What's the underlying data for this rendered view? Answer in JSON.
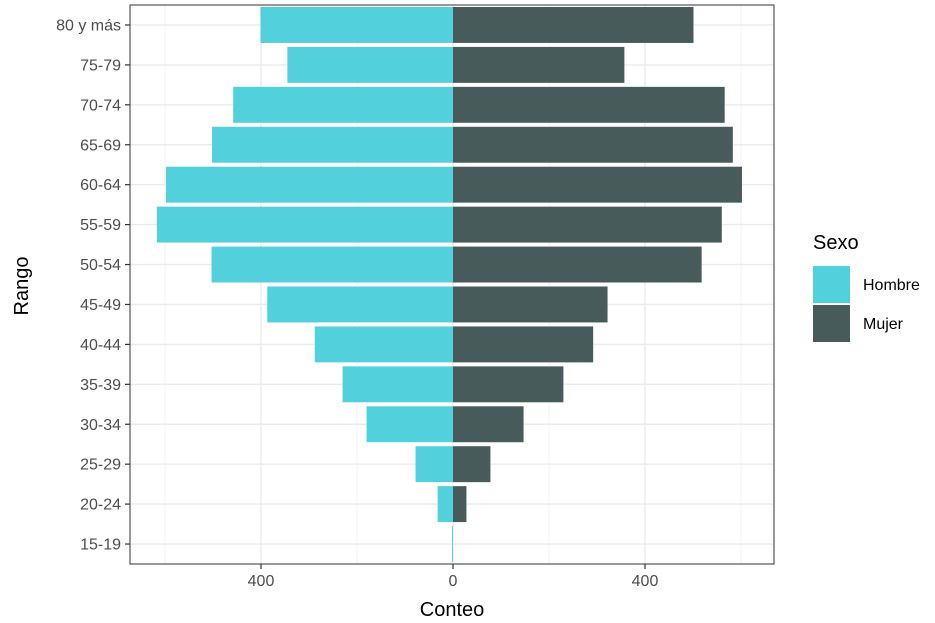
{
  "chart_data": {
    "type": "bar",
    "orientation": "horizontal",
    "layout": "population-pyramid",
    "categories": [
      "15-19",
      "20-24",
      "25-29",
      "30-34",
      "35-39",
      "40-44",
      "45-49",
      "50-54",
      "55-59",
      "60-64",
      "65-69",
      "70-74",
      "75-79",
      "80 y más"
    ],
    "series": [
      {
        "name": "Hombre",
        "color": "#52d1dc",
        "values": [
          2,
          32,
          78,
          180,
          230,
          288,
          387,
          503,
          617,
          598,
          502,
          458,
          345,
          401
        ]
      },
      {
        "name": "Mujer",
        "color": "#475b5a",
        "values": [
          0,
          28,
          78,
          147,
          230,
          292,
          322,
          518,
          560,
          602,
          583,
          566,
          357,
          501
        ]
      }
    ],
    "note_values": "Hombre values are drawn to the left of zero; Mujer to the right.",
    "xlabel": "Conteo",
    "ylabel": "Rango",
    "xlim": [
      -675,
      675
    ],
    "xticks": [
      -400,
      0,
      400
    ],
    "xtick_labels": [
      "400",
      "0",
      "400"
    ],
    "grid": true,
    "legend": {
      "title": "Sexo",
      "position": "right"
    }
  }
}
